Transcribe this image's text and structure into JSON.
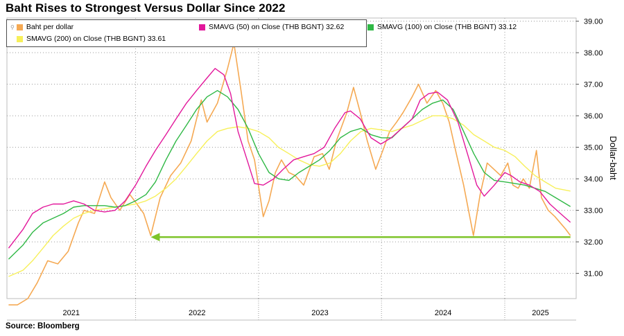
{
  "title": "Baht Rises to Strongest Versus Dollar Since 2022",
  "source": "Source: Bloomberg",
  "legend": {
    "baht": "Baht per dollar",
    "sma50": "SMAVG (50)  on Close (THB BGNT) 32.62",
    "sma100": "SMAVG (100)  on Close (THB BGNT) 33.12",
    "sma200": "SMAVG (200)  on Close (THB BGNT) 33.61"
  },
  "chart_data": {
    "type": "line",
    "title": "Baht Rises to Strongest Versus Dollar Since 2022",
    "xlabel": "",
    "ylabel": "Dollar-baht",
    "x_ticks": [
      "2021",
      "2022",
      "2023",
      "2024",
      "2025"
    ],
    "y_ticks": [
      "31.00",
      "32.00",
      "33.00",
      "34.00",
      "35.00",
      "36.00",
      "37.00",
      "38.00",
      "39.00"
    ],
    "ylim": [
      30.2,
      39.1
    ],
    "xlim": [
      "2020-12-15",
      "2025-08-01"
    ],
    "grid": true,
    "legend_position": "top-left",
    "series": [
      {
        "name": "Baht per dollar",
        "color": "#f5a953",
        "points": [
          [
            "2020-12-20",
            30.0
          ],
          [
            "2021-01-15",
            30.0
          ],
          [
            "2021-02-15",
            30.2
          ],
          [
            "2021-03-15",
            30.7
          ],
          [
            "2021-04-15",
            31.4
          ],
          [
            "2021-05-15",
            31.3
          ],
          [
            "2021-06-15",
            31.7
          ],
          [
            "2021-07-15",
            32.6
          ],
          [
            "2021-08-01",
            33.0
          ],
          [
            "2021-09-01",
            32.9
          ],
          [
            "2021-10-01",
            33.9
          ],
          [
            "2021-10-20",
            33.4
          ],
          [
            "2021-11-15",
            33.0
          ],
          [
            "2021-12-15",
            33.5
          ],
          [
            "2022-01-05",
            33.2
          ],
          [
            "2022-01-25",
            32.9
          ],
          [
            "2022-02-15",
            32.2
          ],
          [
            "2022-03-15",
            33.4
          ],
          [
            "2022-04-15",
            34.1
          ],
          [
            "2022-05-15",
            34.5
          ],
          [
            "2022-06-15",
            35.2
          ],
          [
            "2022-07-15",
            36.5
          ],
          [
            "2022-08-01",
            35.8
          ],
          [
            "2022-09-01",
            36.4
          ],
          [
            "2022-10-01",
            37.5
          ],
          [
            "2022-10-20",
            38.3
          ],
          [
            "2022-11-10",
            36.8
          ],
          [
            "2022-12-01",
            35.2
          ],
          [
            "2022-12-20",
            34.6
          ],
          [
            "2023-01-15",
            32.8
          ],
          [
            "2023-02-01",
            33.3
          ],
          [
            "2023-02-20",
            34.2
          ],
          [
            "2023-03-10",
            34.6
          ],
          [
            "2023-04-01",
            34.2
          ],
          [
            "2023-04-20",
            34.1
          ],
          [
            "2023-05-15",
            33.8
          ],
          [
            "2023-06-15",
            34.7
          ],
          [
            "2023-07-10",
            34.8
          ],
          [
            "2023-07-30",
            34.3
          ],
          [
            "2023-08-20",
            35.2
          ],
          [
            "2023-09-20",
            36.1
          ],
          [
            "2023-10-10",
            36.9
          ],
          [
            "2023-10-30",
            36.1
          ],
          [
            "2023-11-20",
            35.2
          ],
          [
            "2023-12-15",
            34.3
          ],
          [
            "2024-01-05",
            34.9
          ],
          [
            "2024-01-25",
            35.5
          ],
          [
            "2024-02-15",
            35.8
          ],
          [
            "2024-03-05",
            36.1
          ],
          [
            "2024-04-01",
            36.6
          ],
          [
            "2024-04-20",
            37.0
          ],
          [
            "2024-05-15",
            36.4
          ],
          [
            "2024-06-10",
            36.8
          ],
          [
            "2024-07-01",
            36.4
          ],
          [
            "2024-07-20",
            35.8
          ],
          [
            "2024-08-10",
            34.8
          ],
          [
            "2024-09-01",
            33.8
          ],
          [
            "2024-09-30",
            32.2
          ],
          [
            "2024-10-20",
            33.5
          ],
          [
            "2024-11-10",
            34.5
          ],
          [
            "2024-11-30",
            34.3
          ],
          [
            "2024-12-20",
            34.1
          ],
          [
            "2025-01-10",
            34.5
          ],
          [
            "2025-01-25",
            33.8
          ],
          [
            "2025-02-10",
            33.7
          ],
          [
            "2025-02-25",
            34.0
          ],
          [
            "2025-03-15",
            33.7
          ],
          [
            "2025-04-05",
            34.9
          ],
          [
            "2025-04-20",
            33.4
          ],
          [
            "2025-05-10",
            33.0
          ],
          [
            "2025-05-30",
            32.8
          ],
          [
            "2025-06-15",
            32.6
          ],
          [
            "2025-07-01",
            32.4
          ],
          [
            "2025-07-15",
            32.2
          ]
        ]
      },
      {
        "name": "SMAVG (50)  on Close (THB BGNT) 32.62",
        "color": "#e2179b",
        "points": [
          [
            "2020-12-20",
            31.8
          ],
          [
            "2021-02-01",
            32.4
          ],
          [
            "2021-03-01",
            32.9
          ],
          [
            "2021-04-01",
            33.1
          ],
          [
            "2021-05-01",
            33.2
          ],
          [
            "2021-06-01",
            33.2
          ],
          [
            "2021-07-01",
            33.3
          ],
          [
            "2021-08-01",
            33.2
          ],
          [
            "2021-09-01",
            33.0
          ],
          [
            "2021-10-01",
            32.95
          ],
          [
            "2021-11-01",
            33.0
          ],
          [
            "2021-12-01",
            33.3
          ],
          [
            "2022-01-01",
            33.8
          ],
          [
            "2022-02-01",
            34.4
          ],
          [
            "2022-03-01",
            34.9
          ],
          [
            "2022-04-01",
            35.4
          ],
          [
            "2022-05-01",
            35.9
          ],
          [
            "2022-06-01",
            36.4
          ],
          [
            "2022-07-01",
            36.8
          ],
          [
            "2022-08-01",
            37.2
          ],
          [
            "2022-08-25",
            37.5
          ],
          [
            "2022-09-20",
            37.3
          ],
          [
            "2022-10-10",
            36.7
          ],
          [
            "2022-11-01",
            35.5
          ],
          [
            "2022-12-01",
            34.5
          ],
          [
            "2022-12-20",
            33.85
          ],
          [
            "2023-01-15",
            33.8
          ],
          [
            "2023-02-15",
            34.0
          ],
          [
            "2023-03-15",
            34.3
          ],
          [
            "2023-04-15",
            34.6
          ],
          [
            "2023-05-15",
            34.7
          ],
          [
            "2023-06-15",
            34.8
          ],
          [
            "2023-07-15",
            35.0
          ],
          [
            "2023-08-15",
            35.6
          ],
          [
            "2023-09-15",
            36.1
          ],
          [
            "2023-10-01",
            36.15
          ],
          [
            "2023-10-30",
            35.9
          ],
          [
            "2023-12-01",
            35.3
          ],
          [
            "2023-12-30",
            35.1
          ],
          [
            "2024-01-30",
            35.3
          ],
          [
            "2024-03-01",
            35.6
          ],
          [
            "2024-04-01",
            35.9
          ],
          [
            "2024-04-25",
            36.5
          ],
          [
            "2024-05-20",
            36.7
          ],
          [
            "2024-06-15",
            36.75
          ],
          [
            "2024-07-15",
            36.5
          ],
          [
            "2024-08-15",
            35.8
          ],
          [
            "2024-09-15",
            34.7
          ],
          [
            "2024-10-10",
            33.8
          ],
          [
            "2024-11-01",
            33.45
          ],
          [
            "2024-12-01",
            33.8
          ],
          [
            "2025-01-01",
            34.2
          ],
          [
            "2025-01-20",
            34.1
          ],
          [
            "2025-02-15",
            33.9
          ],
          [
            "2025-03-15",
            33.8
          ],
          [
            "2025-04-15",
            33.6
          ],
          [
            "2025-05-15",
            33.2
          ],
          [
            "2025-06-15",
            32.9
          ],
          [
            "2025-07-15",
            32.62
          ]
        ]
      },
      {
        "name": "SMAVG (100)  on Close (THB BGNT) 33.12",
        "color": "#2fb845",
        "points": [
          [
            "2020-12-20",
            31.45
          ],
          [
            "2021-02-01",
            31.9
          ],
          [
            "2021-03-01",
            32.3
          ],
          [
            "2021-04-01",
            32.6
          ],
          [
            "2021-05-01",
            32.75
          ],
          [
            "2021-06-01",
            32.9
          ],
          [
            "2021-07-01",
            33.1
          ],
          [
            "2021-08-01",
            33.15
          ],
          [
            "2021-09-01",
            33.15
          ],
          [
            "2021-10-01",
            33.15
          ],
          [
            "2021-11-01",
            33.1
          ],
          [
            "2021-12-01",
            33.15
          ],
          [
            "2022-01-01",
            33.3
          ],
          [
            "2022-02-01",
            33.5
          ],
          [
            "2022-03-01",
            33.9
          ],
          [
            "2022-04-01",
            34.6
          ],
          [
            "2022-05-01",
            35.2
          ],
          [
            "2022-06-01",
            35.7
          ],
          [
            "2022-07-01",
            36.2
          ],
          [
            "2022-08-01",
            36.6
          ],
          [
            "2022-09-01",
            36.8
          ],
          [
            "2022-10-01",
            36.6
          ],
          [
            "2022-11-01",
            36.2
          ],
          [
            "2022-12-01",
            35.6
          ],
          [
            "2023-01-01",
            34.8
          ],
          [
            "2023-02-01",
            34.2
          ],
          [
            "2023-03-01",
            34.0
          ],
          [
            "2023-04-01",
            33.95
          ],
          [
            "2023-05-01",
            34.2
          ],
          [
            "2023-06-01",
            34.4
          ],
          [
            "2023-07-01",
            34.6
          ],
          [
            "2023-08-01",
            34.9
          ],
          [
            "2023-09-01",
            35.3
          ],
          [
            "2023-10-01",
            35.5
          ],
          [
            "2023-11-01",
            35.6
          ],
          [
            "2023-12-01",
            35.4
          ],
          [
            "2024-01-01",
            35.3
          ],
          [
            "2024-02-01",
            35.3
          ],
          [
            "2024-03-01",
            35.6
          ],
          [
            "2024-04-01",
            35.9
          ],
          [
            "2024-05-01",
            36.2
          ],
          [
            "2024-06-01",
            36.4
          ],
          [
            "2024-07-01",
            36.5
          ],
          [
            "2024-08-01",
            36.2
          ],
          [
            "2024-09-01",
            35.5
          ],
          [
            "2024-10-01",
            34.8
          ],
          [
            "2024-11-01",
            34.2
          ],
          [
            "2024-12-01",
            33.95
          ],
          [
            "2025-01-01",
            33.9
          ],
          [
            "2025-02-01",
            33.85
          ],
          [
            "2025-03-01",
            33.8
          ],
          [
            "2025-04-01",
            33.7
          ],
          [
            "2025-05-01",
            33.6
          ],
          [
            "2025-06-01",
            33.4
          ],
          [
            "2025-07-15",
            33.12
          ]
        ]
      },
      {
        "name": "SMAVG (200)  on Close (THB BGNT) 33.61",
        "color": "#f7f05a",
        "points": [
          [
            "2020-12-20",
            30.9
          ],
          [
            "2021-02-01",
            31.1
          ],
          [
            "2021-03-01",
            31.4
          ],
          [
            "2021-04-01",
            31.8
          ],
          [
            "2021-05-01",
            32.2
          ],
          [
            "2021-06-01",
            32.5
          ],
          [
            "2021-07-01",
            32.75
          ],
          [
            "2021-08-01",
            32.9
          ],
          [
            "2021-09-01",
            33.0
          ],
          [
            "2021-10-01",
            33.05
          ],
          [
            "2021-11-01",
            33.1
          ],
          [
            "2021-12-01",
            33.15
          ],
          [
            "2022-01-01",
            33.2
          ],
          [
            "2022-02-01",
            33.3
          ],
          [
            "2022-03-01",
            33.45
          ],
          [
            "2022-04-01",
            33.7
          ],
          [
            "2022-05-01",
            34.0
          ],
          [
            "2022-06-01",
            34.4
          ],
          [
            "2022-07-01",
            34.8
          ],
          [
            "2022-08-01",
            35.2
          ],
          [
            "2022-09-01",
            35.5
          ],
          [
            "2022-10-01",
            35.6
          ],
          [
            "2022-11-01",
            35.65
          ],
          [
            "2022-12-01",
            35.6
          ],
          [
            "2023-01-01",
            35.5
          ],
          [
            "2023-02-01",
            35.3
          ],
          [
            "2023-03-01",
            35.0
          ],
          [
            "2023-04-01",
            34.8
          ],
          [
            "2023-05-01",
            34.6
          ],
          [
            "2023-06-01",
            34.45
          ],
          [
            "2023-07-01",
            34.4
          ],
          [
            "2023-08-01",
            34.5
          ],
          [
            "2023-09-01",
            34.8
          ],
          [
            "2023-10-01",
            35.2
          ],
          [
            "2023-11-01",
            35.5
          ],
          [
            "2023-12-01",
            35.6
          ],
          [
            "2024-01-01",
            35.55
          ],
          [
            "2024-02-01",
            35.5
          ],
          [
            "2024-03-01",
            35.6
          ],
          [
            "2024-04-01",
            35.7
          ],
          [
            "2024-05-01",
            35.85
          ],
          [
            "2024-06-01",
            36.0
          ],
          [
            "2024-07-01",
            36.0
          ],
          [
            "2024-08-01",
            35.9
          ],
          [
            "2024-09-01",
            35.7
          ],
          [
            "2024-10-01",
            35.4
          ],
          [
            "2024-11-01",
            35.2
          ],
          [
            "2024-12-01",
            35.0
          ],
          [
            "2025-01-01",
            34.9
          ],
          [
            "2025-02-01",
            34.7
          ],
          [
            "2025-03-01",
            34.4
          ],
          [
            "2025-04-01",
            34.1
          ],
          [
            "2025-05-01",
            33.9
          ],
          [
            "2025-06-01",
            33.7
          ],
          [
            "2025-07-15",
            33.61
          ]
        ]
      }
    ],
    "annotations": [
      {
        "type": "arrow",
        "color": "#7ec42a",
        "from": [
          "2025-07-15",
          32.15
        ],
        "to": [
          "2022-02-15",
          32.15
        ]
      }
    ]
  }
}
